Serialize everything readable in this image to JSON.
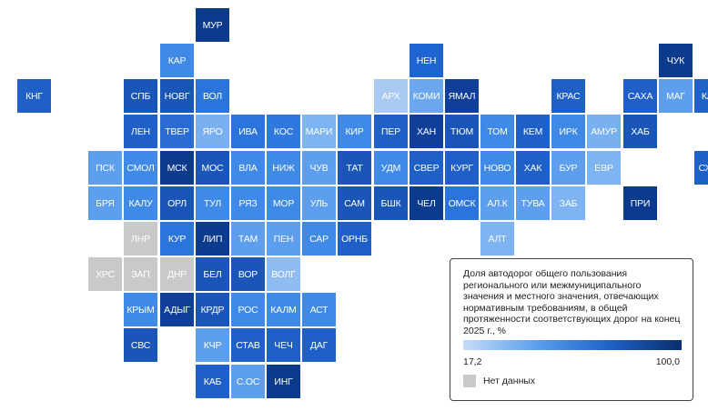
{
  "regions": [
    {
      "label": "МУР",
      "row": 0,
      "col": 5,
      "color": "#0c3a8c"
    },
    {
      "label": "КАР",
      "row": 1,
      "col": 4,
      "color": "#3f8ae6"
    },
    {
      "label": "НЕН",
      "row": 1,
      "col": 11,
      "color": "#1e64d2"
    },
    {
      "label": "ЧУК",
      "row": 1,
      "col": 18,
      "color": "#0c3a8c"
    },
    {
      "label": "КНГ",
      "row": 2,
      "col": 0,
      "color": "#1e5fc8"
    },
    {
      "label": "СПБ",
      "row": 2,
      "col": 3,
      "color": "#1a56b8"
    },
    {
      "label": "НОВГ",
      "row": 2,
      "col": 4,
      "color": "#1a56b8"
    },
    {
      "label": "ВОЛ",
      "row": 2,
      "col": 5,
      "color": "#2b74dc"
    },
    {
      "label": "АРХ",
      "row": 2,
      "col": 10,
      "color": "#a9cbf3"
    },
    {
      "label": "КОМИ",
      "row": 2,
      "col": 11,
      "color": "#6aa7ee"
    },
    {
      "label": "ЯМАЛ",
      "row": 2,
      "col": 12,
      "color": "#0f3f99"
    },
    {
      "label": "КРАС",
      "row": 2,
      "col": 15,
      "color": "#1e5fc8"
    },
    {
      "label": "САХА",
      "row": 2,
      "col": 17,
      "color": "#1e5fc8"
    },
    {
      "label": "МАГ",
      "row": 2,
      "col": 18,
      "color": "#5d9fee"
    },
    {
      "label": "КАМ",
      "row": 2,
      "col": 19,
      "color": "#1f63c6"
    },
    {
      "label": "ЛЕН",
      "row": 3,
      "col": 3,
      "color": "#1e5fc8"
    },
    {
      "label": "ТВЕР",
      "row": 3,
      "col": 4,
      "color": "#2a6cd4"
    },
    {
      "label": "ЯРО",
      "row": 3,
      "col": 5,
      "color": "#79b1f0"
    },
    {
      "label": "ИВА",
      "row": 3,
      "col": 6,
      "color": "#2b74dc"
    },
    {
      "label": "КОС",
      "row": 3,
      "col": 7,
      "color": "#2f78df"
    },
    {
      "label": "МАРИ",
      "row": 3,
      "col": 8,
      "color": "#7db4f1"
    },
    {
      "label": "КИР",
      "row": 3,
      "col": 9,
      "color": "#3f8ae6"
    },
    {
      "label": "ПЕР",
      "row": 3,
      "col": 10,
      "color": "#1e5fc8"
    },
    {
      "label": "ХАН",
      "row": 3,
      "col": 11,
      "color": "#0f3f99"
    },
    {
      "label": "ТЮМ",
      "row": 3,
      "col": 12,
      "color": "#1a56b8"
    },
    {
      "label": "ТОМ",
      "row": 3,
      "col": 13,
      "color": "#3f8ae6"
    },
    {
      "label": "КЕМ",
      "row": 3,
      "col": 14,
      "color": "#1e5fc8"
    },
    {
      "label": "ИРК",
      "row": 3,
      "col": 15,
      "color": "#3f8ae6"
    },
    {
      "label": "АМУР",
      "row": 3,
      "col": 16,
      "color": "#79b1f0"
    },
    {
      "label": "ХАБ",
      "row": 3,
      "col": 17,
      "color": "#1a56b8"
    },
    {
      "label": "ПСК",
      "row": 4,
      "col": 2,
      "color": "#5d9fee"
    },
    {
      "label": "СМОЛ",
      "row": 4,
      "col": 3,
      "color": "#3f8ae6"
    },
    {
      "label": "МСК",
      "row": 4,
      "col": 4,
      "color": "#0c3a8c"
    },
    {
      "label": "МОС",
      "row": 4,
      "col": 5,
      "color": "#1a56b8"
    },
    {
      "label": "ВЛА",
      "row": 4,
      "col": 6,
      "color": "#3f8ae6"
    },
    {
      "label": "НИЖ",
      "row": 4,
      "col": 7,
      "color": "#3f8ae6"
    },
    {
      "label": "ЧУВ",
      "row": 4,
      "col": 8,
      "color": "#5d9fee"
    },
    {
      "label": "ТАТ",
      "row": 4,
      "col": 9,
      "color": "#1a56b8"
    },
    {
      "label": "УДМ",
      "row": 4,
      "col": 10,
      "color": "#3f8ae6"
    },
    {
      "label": "СВЕР",
      "row": 4,
      "col": 11,
      "color": "#1e5fc8"
    },
    {
      "label": "КУРГ",
      "row": 4,
      "col": 12,
      "color": "#1e5fc8"
    },
    {
      "label": "НОВО",
      "row": 4,
      "col": 13,
      "color": "#3f8ae6"
    },
    {
      "label": "ХАК",
      "row": 4,
      "col": 14,
      "color": "#1e5fc8"
    },
    {
      "label": "БУР",
      "row": 4,
      "col": 15,
      "color": "#5d9fee"
    },
    {
      "label": "ЕВР",
      "row": 4,
      "col": 16,
      "color": "#7db4f1"
    },
    {
      "label": "СХЛН",
      "row": 4,
      "col": 19,
      "color": "#1e5fc8"
    },
    {
      "label": "БРЯ",
      "row": 5,
      "col": 2,
      "color": "#5d9fee"
    },
    {
      "label": "КАЛУ",
      "row": 5,
      "col": 3,
      "color": "#3f8ae6"
    },
    {
      "label": "ОРЛ",
      "row": 5,
      "col": 4,
      "color": "#1a56b8"
    },
    {
      "label": "ТУЛ",
      "row": 5,
      "col": 5,
      "color": "#3f8ae6"
    },
    {
      "label": "РЯЗ",
      "row": 5,
      "col": 6,
      "color": "#3f8ae6"
    },
    {
      "label": "МОР",
      "row": 5,
      "col": 7,
      "color": "#3f8ae6"
    },
    {
      "label": "УЛЬ",
      "row": 5,
      "col": 8,
      "color": "#5d9fee"
    },
    {
      "label": "САМ",
      "row": 5,
      "col": 9,
      "color": "#1a56b8"
    },
    {
      "label": "БШК",
      "row": 5,
      "col": 10,
      "color": "#1a56b8"
    },
    {
      "label": "ЧЕЛ",
      "row": 5,
      "col": 11,
      "color": "#0c3a8c"
    },
    {
      "label": "ОМСК",
      "row": 5,
      "col": 12,
      "color": "#2b74dc"
    },
    {
      "label": "АЛ.К",
      "row": 5,
      "col": 13,
      "color": "#5d9fee"
    },
    {
      "label": "ТУВА",
      "row": 5,
      "col": 14,
      "color": "#5d9fee"
    },
    {
      "label": "ЗАБ",
      "row": 5,
      "col": 15,
      "color": "#7db4f1"
    },
    {
      "label": "ПРИ",
      "row": 5,
      "col": 17,
      "color": "#0c3a8c"
    },
    {
      "label": "ЛНР",
      "row": 6,
      "col": 3,
      "color": "#c9c9c9"
    },
    {
      "label": "КУР",
      "row": 6,
      "col": 4,
      "color": "#2b74dc"
    },
    {
      "label": "ЛИП",
      "row": 6,
      "col": 5,
      "color": "#0c3a8c"
    },
    {
      "label": "ТАМ",
      "row": 6,
      "col": 6,
      "color": "#5d9fee"
    },
    {
      "label": "ПЕН",
      "row": 6,
      "col": 7,
      "color": "#5d9fee"
    },
    {
      "label": "САР",
      "row": 6,
      "col": 8,
      "color": "#3f8ae6"
    },
    {
      "label": "ОРНБ",
      "row": 6,
      "col": 9,
      "color": "#1e5fc8"
    },
    {
      "label": "АЛТ",
      "row": 6,
      "col": 13,
      "color": "#7db4f1"
    },
    {
      "label": "ХРС",
      "row": 7,
      "col": 2,
      "color": "#c9c9c9"
    },
    {
      "label": "ЗАП",
      "row": 7,
      "col": 3,
      "color": "#c9c9c9"
    },
    {
      "label": "ДНР",
      "row": 7,
      "col": 4,
      "color": "#c9c9c9"
    },
    {
      "label": "БЕЛ",
      "row": 7,
      "col": 5,
      "color": "#1a56b8"
    },
    {
      "label": "ВОР",
      "row": 7,
      "col": 6,
      "color": "#1a56b8"
    },
    {
      "label": "ВОЛГ",
      "row": 7,
      "col": 7,
      "color": "#8fbdf2"
    },
    {
      "label": "КРЫМ",
      "row": 8,
      "col": 3,
      "color": "#3f8ae6"
    },
    {
      "label": "АДЫГ",
      "row": 8,
      "col": 4,
      "color": "#0f3f99"
    },
    {
      "label": "КРДР",
      "row": 8,
      "col": 5,
      "color": "#1a56b8"
    },
    {
      "label": "РОС",
      "row": 8,
      "col": 6,
      "color": "#3f8ae6"
    },
    {
      "label": "КАЛМ",
      "row": 8,
      "col": 7,
      "color": "#3f8ae6"
    },
    {
      "label": "АСТ",
      "row": 8,
      "col": 8,
      "color": "#3f8ae6"
    },
    {
      "label": "СВС",
      "row": 9,
      "col": 3,
      "color": "#1a56b8"
    },
    {
      "label": "КЧР",
      "row": 9,
      "col": 5,
      "color": "#5d9fee"
    },
    {
      "label": "СТАВ",
      "row": 9,
      "col": 6,
      "color": "#1e5fc8"
    },
    {
      "label": "ЧЕЧ",
      "row": 9,
      "col": 7,
      "color": "#1e5fc8"
    },
    {
      "label": "ДАГ",
      "row": 9,
      "col": 8,
      "color": "#1e5fc8"
    },
    {
      "label": "КАБ",
      "row": 10,
      "col": 5,
      "color": "#1e5fc8"
    },
    {
      "label": "С.ОС",
      "row": 10,
      "col": 6,
      "color": "#5d9fee"
    },
    {
      "label": "ИНГ",
      "row": 10,
      "col": 7,
      "color": "#0c3a8c"
    }
  ],
  "legend": {
    "title": "Доля автодорог общего пользования регионального или межмуниципального значения и местного значения, отвечающих нормативным требованиям, в общей протяженности соответствующих дорог на конец 2025 г., %",
    "min_label": "17,2",
    "max_label": "100,0",
    "no_data_label": "Нет данных",
    "no_data_color": "#c9c9c9"
  }
}
